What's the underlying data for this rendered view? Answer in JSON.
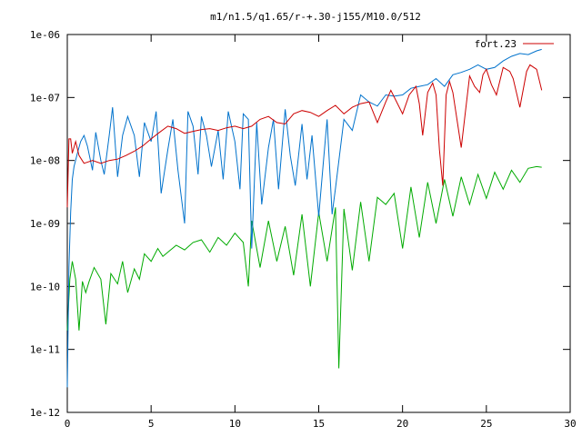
{
  "chart_data": {
    "type": "line",
    "title": "m1/n1.5/q1.65/r-+.30-j155/M10.0/512",
    "xlabel": "",
    "ylabel": "",
    "xlim": [
      0,
      30
    ],
    "ylim": [
      1e-12,
      1e-06
    ],
    "yscale": "log",
    "grid": false,
    "legend_position": "top-right",
    "x_ticks": [
      0,
      5,
      10,
      15,
      20,
      25,
      30
    ],
    "x_tick_labels": [
      "0",
      "5",
      "10",
      "15",
      "20",
      "25",
      "30"
    ],
    "y_ticks": [
      1e-12,
      1e-11,
      1e-10,
      1e-09,
      1e-08,
      1e-07,
      1e-06
    ],
    "y_tick_labels": [
      "1e-12",
      "1e-11",
      "1e-10",
      "1e-09",
      "1e-08",
      "1e-07",
      "1e-06"
    ],
    "series": [
      {
        "name": "fort.23",
        "color": "#cc0000",
        "x": [
          0,
          0.1,
          0.2,
          0.3,
          0.5,
          0.7,
          1.0,
          1.5,
          2.0,
          2.5,
          3.0,
          3.5,
          4.0,
          4.5,
          5.0,
          5.5,
          6.0,
          6.5,
          7.0,
          7.5,
          8.0,
          8.5,
          9.0,
          9.5,
          10.0,
          10.5,
          11.0,
          11.5,
          12.0,
          12.5,
          13.0,
          13.5,
          14.0,
          14.5,
          15.0,
          15.5,
          16.0,
          16.5,
          17.0,
          17.5,
          18.0,
          18.5,
          19.0,
          19.3,
          19.6,
          20.0,
          20.4,
          20.8,
          21.0,
          21.2,
          21.5,
          21.8,
          22.0,
          22.2,
          22.4,
          22.6,
          22.8,
          23.0,
          23.5,
          24.0,
          24.3,
          24.6,
          24.8,
          25.0,
          25.3,
          25.6,
          26.0,
          26.4,
          26.6,
          27.0,
          27.4,
          27.6,
          28.0,
          28.3
        ],
        "y": [
          1.8e-09,
          2.2e-08,
          2.2e-08,
          1.3e-08,
          2e-08,
          1.2e-08,
          9e-09,
          1e-08,
          9e-09,
          1e-08,
          1.05e-08,
          1.2e-08,
          1.4e-08,
          1.7e-08,
          2.2e-08,
          2.8e-08,
          3.5e-08,
          3.2e-08,
          2.7e-08,
          2.9e-08,
          3.1e-08,
          3.2e-08,
          3e-08,
          3.3e-08,
          3.5e-08,
          3.2e-08,
          3.5e-08,
          4.5e-08,
          5e-08,
          4e-08,
          3.8e-08,
          5.5e-08,
          6.2e-08,
          5.8e-08,
          5e-08,
          6.2e-08,
          7.5e-08,
          5.5e-08,
          7e-08,
          8e-08,
          8.5e-08,
          4e-08,
          8.5e-08,
          1.3e-07,
          9e-08,
          5.5e-08,
          1.1e-07,
          1.5e-07,
          8e-08,
          2.5e-08,
          1.2e-07,
          1.7e-07,
          1.1e-07,
          1.5e-08,
          4e-09,
          1.1e-07,
          1.8e-07,
          1.2e-07,
          1.6e-08,
          2.2e-07,
          1.5e-07,
          1.2e-07,
          2.3e-07,
          2.8e-07,
          1.6e-07,
          1.1e-07,
          3e-07,
          2.6e-07,
          2e-07,
          7e-08,
          2.6e-07,
          3.3e-07,
          2.8e-07,
          1.3e-07
        ]
      },
      {
        "name": "",
        "color": "#0072cc",
        "x": [
          0,
          0.1,
          0.2,
          0.3,
          0.4,
          0.6,
          0.8,
          1.0,
          1.2,
          1.5,
          1.7,
          2.0,
          2.2,
          2.5,
          2.7,
          3.0,
          3.3,
          3.6,
          4.0,
          4.3,
          4.6,
          5.0,
          5.3,
          5.6,
          6.0,
          6.3,
          6.6,
          7.0,
          7.2,
          7.5,
          7.8,
          8.0,
          8.3,
          8.6,
          9.0,
          9.3,
          9.6,
          10.0,
          10.3,
          10.5,
          10.8,
          11.0,
          11.3,
          11.6,
          12.0,
          12.3,
          12.6,
          13.0,
          13.3,
          13.6,
          14.0,
          14.3,
          14.6,
          15.0,
          15.3,
          15.5,
          15.8,
          16.0,
          16.5,
          17.0,
          17.5,
          18.0,
          18.5,
          19.0,
          19.5,
          20.0,
          20.5,
          21.0,
          21.5,
          22.0,
          22.5,
          23.0,
          23.5,
          24.0,
          24.5,
          25.0,
          25.5,
          26.0,
          26.5,
          27.0,
          27.5,
          28.0,
          28.3
        ],
        "y": [
          2.5e-12,
          2e-10,
          1.5e-09,
          5e-09,
          8e-09,
          1.3e-08,
          2e-08,
          2.5e-08,
          1.7e-08,
          7e-09,
          2.8e-08,
          1e-08,
          6e-09,
          2.5e-08,
          7e-08,
          5.5e-09,
          2.5e-08,
          5e-08,
          2.5e-08,
          5.5e-09,
          4e-08,
          2e-08,
          6e-08,
          3e-09,
          1.5e-08,
          4.5e-08,
          7e-09,
          1e-09,
          6e-08,
          3.5e-08,
          6e-09,
          5e-08,
          2.5e-08,
          8e-09,
          3e-08,
          5e-09,
          6e-08,
          2e-08,
          3.5e-09,
          5.5e-08,
          4.5e-08,
          4e-10,
          4e-08,
          2e-09,
          1.6e-08,
          4.5e-08,
          3.5e-09,
          6.5e-08,
          1.2e-08,
          4e-09,
          3.8e-08,
          5e-09,
          2.5e-08,
          1.3e-09,
          1.1e-08,
          4.5e-08,
          1.4e-09,
          3.6e-09,
          4.5e-08,
          3e-08,
          1.1e-07,
          8.5e-08,
          7.3e-08,
          1.1e-07,
          1.05e-07,
          1.1e-07,
          1.4e-07,
          1.5e-07,
          1.6e-07,
          2e-07,
          1.5e-07,
          2.3e-07,
          2.5e-07,
          2.8e-07,
          3.3e-07,
          2.8e-07,
          3e-07,
          3.8e-07,
          4.5e-07,
          5e-07,
          4.8e-07,
          5.5e-07,
          5.8e-07
        ]
      },
      {
        "name": "",
        "color": "#00aa00",
        "x": [
          0,
          0.15,
          0.3,
          0.5,
          0.7,
          0.9,
          1.1,
          1.3,
          1.6,
          2.0,
          2.3,
          2.6,
          3.0,
          3.3,
          3.6,
          4.0,
          4.3,
          4.6,
          5.0,
          5.4,
          5.7,
          6.0,
          6.5,
          7.0,
          7.5,
          8.0,
          8.5,
          9.0,
          9.5,
          10.0,
          10.5,
          10.8,
          11.0,
          11.5,
          12.0,
          12.5,
          13.0,
          13.5,
          14.0,
          14.5,
          15.0,
          15.5,
          16.0,
          16.2,
          16.5,
          17.0,
          17.5,
          18.0,
          18.5,
          19.0,
          19.5,
          20.0,
          20.5,
          21.0,
          21.5,
          22.0,
          22.5,
          23.0,
          23.5,
          24.0,
          24.5,
          25.0,
          25.5,
          26.0,
          26.5,
          27.0,
          27.5,
          28.0,
          28.3
        ],
        "y": [
          2e-11,
          1.3e-10,
          2.5e-10,
          1.3e-10,
          2e-11,
          1.2e-10,
          8e-11,
          1.2e-10,
          2e-10,
          1.3e-10,
          2.5e-11,
          1.6e-10,
          1.1e-10,
          2.5e-10,
          8e-11,
          1.9e-10,
          1.3e-10,
          3.3e-10,
          2.5e-10,
          4e-10,
          3e-10,
          3.5e-10,
          4.5e-10,
          3.8e-10,
          5e-10,
          5.5e-10,
          3.5e-10,
          6e-10,
          4.5e-10,
          7e-10,
          5e-10,
          1e-10,
          1.1e-09,
          2e-10,
          1.1e-09,
          2.5e-10,
          9e-10,
          1.5e-10,
          1.4e-09,
          1e-10,
          1.5e-09,
          2.5e-10,
          1.8e-09,
          5e-12,
          1.7e-09,
          1.8e-10,
          2.2e-09,
          2.5e-10,
          2.6e-09,
          2e-09,
          3e-09,
          4e-10,
          3.8e-09,
          6e-10,
          4.5e-09,
          1e-09,
          5e-09,
          1.3e-09,
          5.5e-09,
          2e-09,
          6e-09,
          2.5e-09,
          6.5e-09,
          3.5e-09,
          7e-09,
          4.5e-09,
          7.5e-09,
          8e-09,
          7.8e-09
        ]
      }
    ]
  }
}
